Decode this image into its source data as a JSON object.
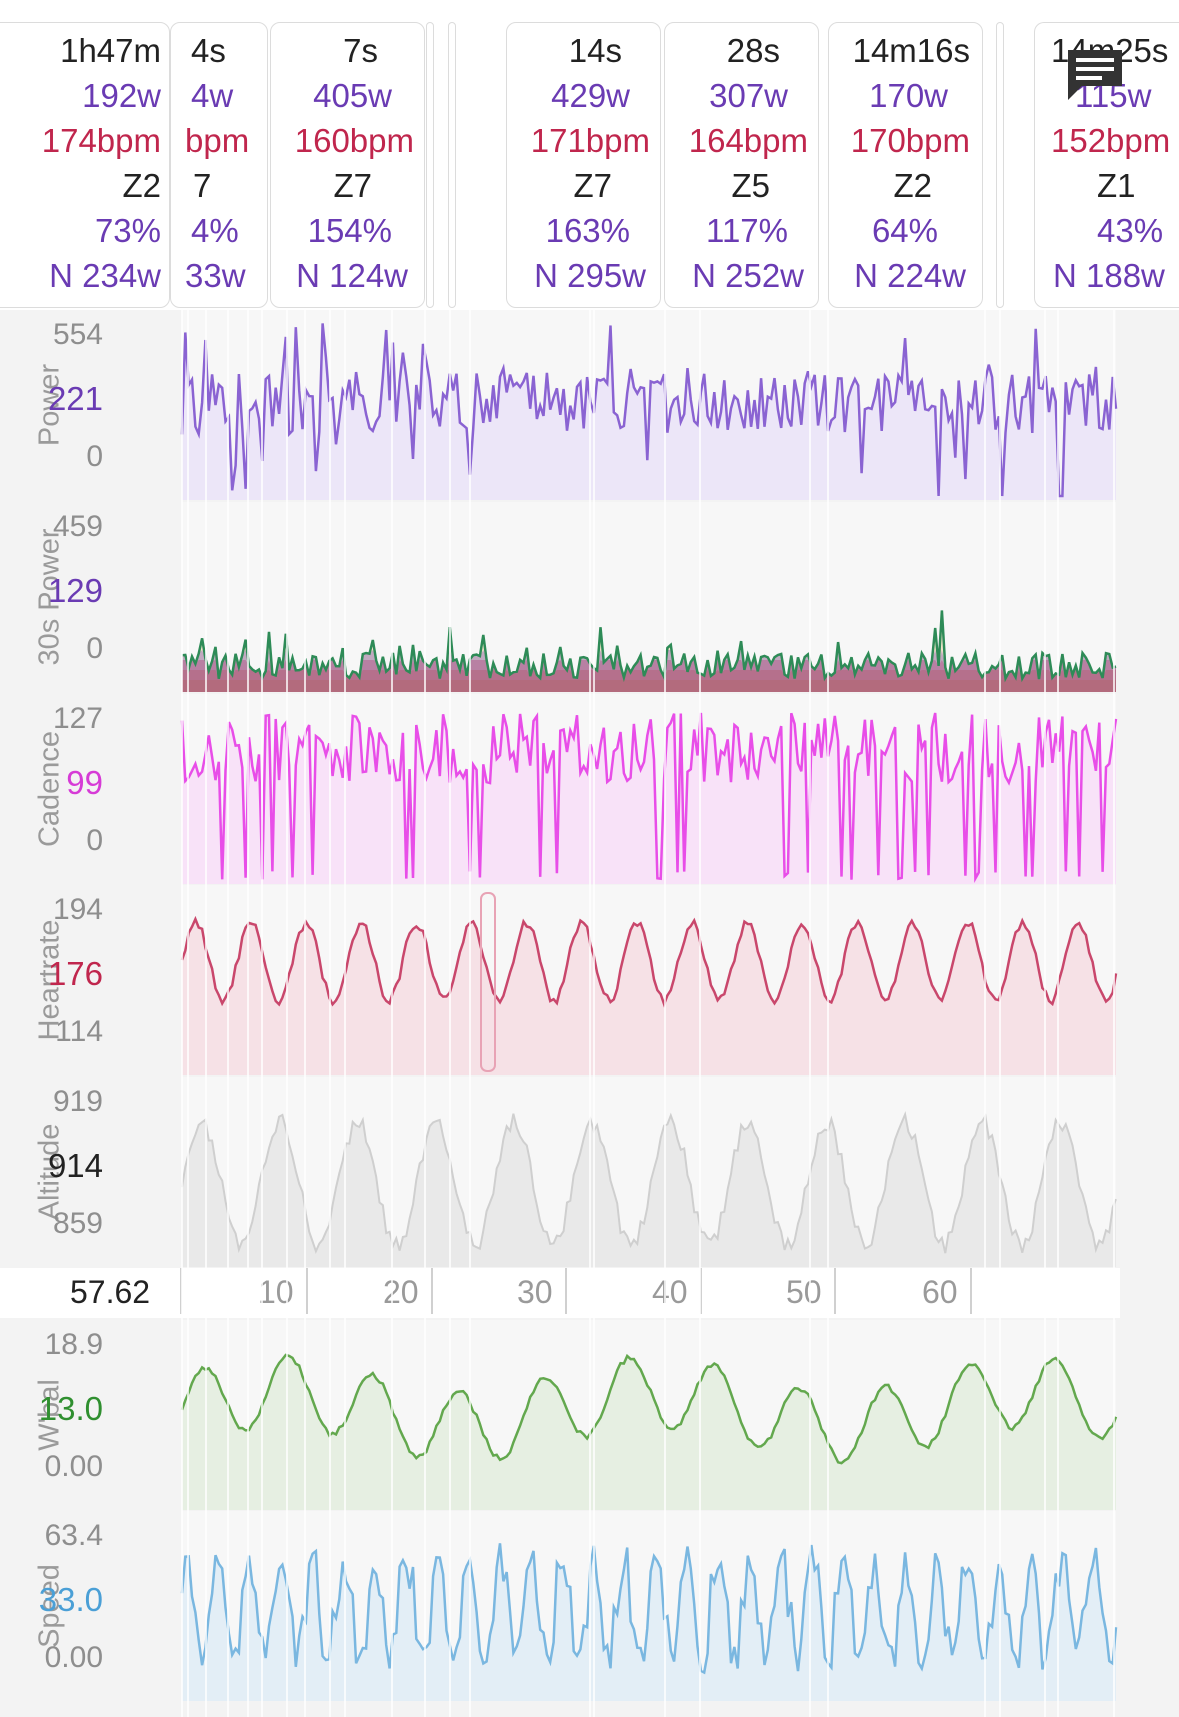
{
  "intervals": [
    {
      "duration": "1h47m",
      "power": "192w",
      "hr": "174bpm",
      "zone": "Z2",
      "pct": "73%",
      "np": "N 234w"
    },
    {
      "duration": "4s",
      "power": "4w",
      "hr": "bpm",
      "zone": "7",
      "pct": "4%",
      "np": "33w"
    },
    {
      "duration": "7s",
      "power": "405w",
      "hr": "160bpm",
      "zone": "Z7",
      "pct": "154%",
      "np": "N 124w"
    },
    {
      "duration": "14s",
      "power": "429w",
      "hr": "171bpm",
      "zone": "Z7",
      "pct": "163%",
      "np": "N 295w"
    },
    {
      "duration": "28s",
      "power": "307w",
      "hr": "164bpm",
      "zone": "Z5",
      "pct": "117%",
      "np": "N 252w"
    },
    {
      "duration": "14m16s",
      "power": "170w",
      "hr": "170bpm",
      "zone": "Z2",
      "pct": "64%",
      "np": "N 224w"
    },
    {
      "duration": "14m25s",
      "power": "115w",
      "hr": "152bpm",
      "zone": "Z1",
      "pct": "43%",
      "np": "N 188w"
    }
  ],
  "panels": [
    {
      "label": "Power",
      "max": "554",
      "mid": "221",
      "min": "0",
      "color": "#8a63d2",
      "fill": "#ece6f8",
      "mid_color": "#6a3bb3"
    },
    {
      "label": "30s Power",
      "max": "459",
      "mid": "129",
      "min": "0",
      "color": "#2e8b57",
      "fill": "#f0e3c8",
      "mid_color": "#6a3bb3"
    },
    {
      "label": "Cadence",
      "max": "127",
      "mid": "99",
      "min": "0",
      "color": "#e84ee8",
      "fill": "#f8e2f8",
      "mid_color": "#d63bd6"
    },
    {
      "label": "Heartrate",
      "max": "194",
      "mid": "176",
      "min": "114",
      "color": "#c9476c",
      "fill": "#f6e1e6",
      "mid_color": "#c0264d"
    },
    {
      "label": "Altitude",
      "max": "919",
      "mid": "914",
      "min": "859",
      "color": "#cfcfcf",
      "fill": "#e9e9e9",
      "mid_color": "#222222"
    },
    {
      "label": "W'bal",
      "max": "18.9",
      "mid": "13.0",
      "min": "0.00",
      "color": "#63a84e",
      "fill": "#e6efe2",
      "mid_color": "#2f8f2f"
    },
    {
      "label": "Speed",
      "max": "63.4",
      "mid": "33.0",
      "min": "0.00",
      "color": "#7ab7e0",
      "fill": "#e3eef6",
      "mid_color": "#4a9fd6"
    }
  ],
  "x_axis": {
    "current": "57.62",
    "ticks": [
      "10",
      "20",
      "30",
      "40",
      "50",
      "60"
    ]
  },
  "icons": {
    "message": "message-icon"
  }
}
